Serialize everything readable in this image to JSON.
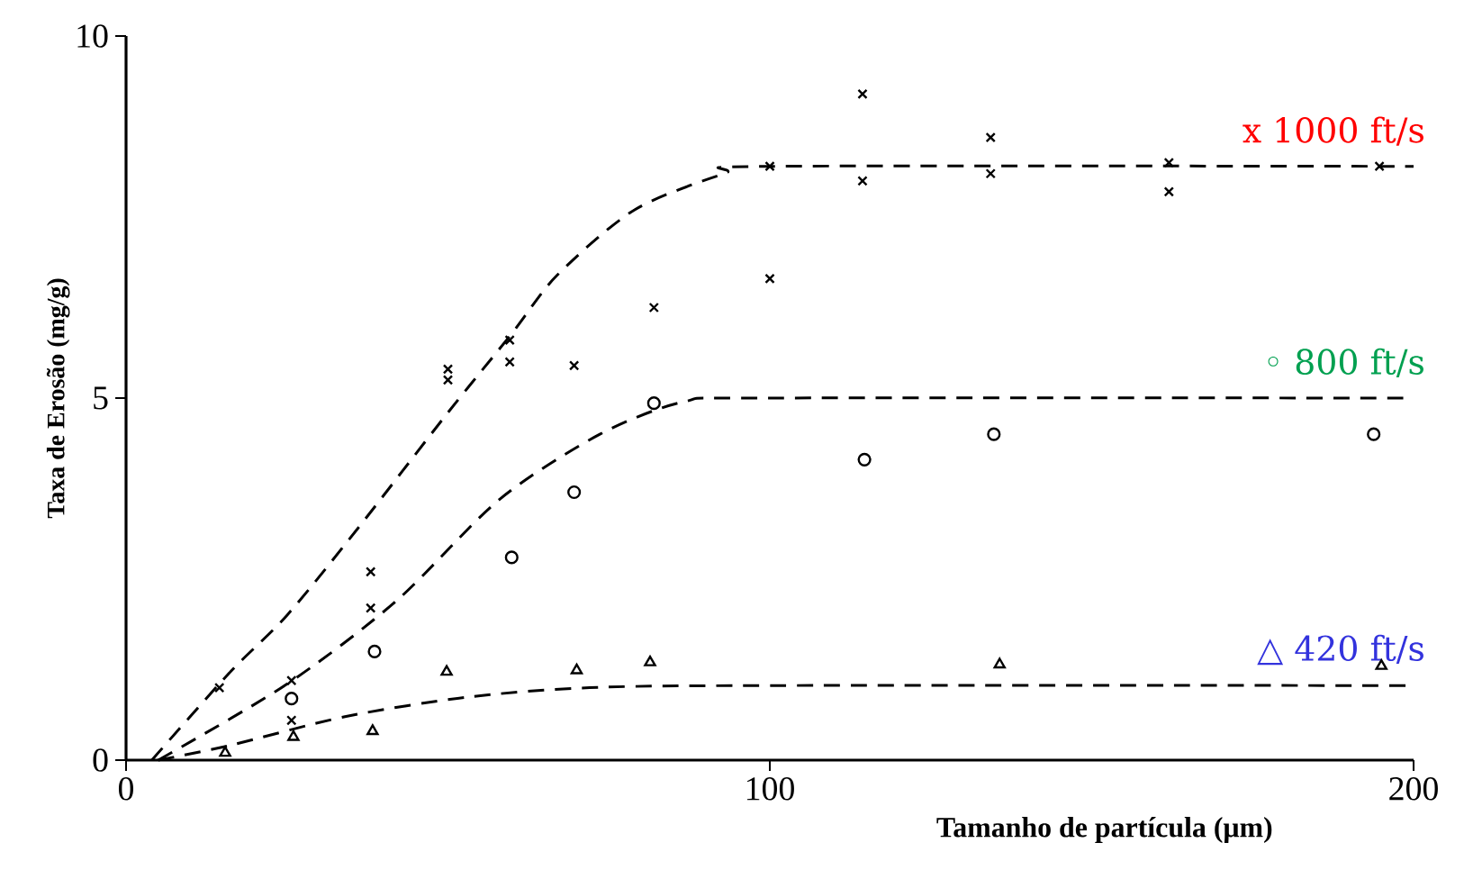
{
  "chart_data": {
    "type": "scatter",
    "xlabel": "Tamanho de partícula (μm)",
    "ylabel": "Taxa de Erosão (mg/g)",
    "xlim": [
      0,
      200
    ],
    "ylim": [
      0,
      10
    ],
    "xticks": [
      0,
      100,
      200
    ],
    "yticks": [
      0,
      5,
      10
    ],
    "grid": false,
    "series": [
      {
        "name": "x 1000 ft/s",
        "color": "#000000",
        "marker": "cross",
        "x": [
          14.5,
          25.7,
          25.7,
          38,
          38,
          50,
          50,
          59.6,
          59.6,
          69.6,
          82,
          100,
          100,
          114.4,
          114.4,
          134.3,
          134.3,
          162,
          162,
          194.7
        ],
        "values": [
          1.0,
          1.1,
          0.55,
          2.6,
          2.1,
          5.4,
          5.25,
          5.8,
          5.5,
          5.45,
          6.25,
          8.2,
          6.65,
          9.2,
          8.0,
          8.6,
          8.1,
          8.25,
          7.85,
          8.2
        ]
      },
      {
        "name": "◦ 800 ft/s",
        "color": "#000000",
        "marker": "circle",
        "x": [
          25.7,
          38.6,
          59.9,
          69.6,
          82,
          114.7,
          134.8,
          193.8
        ],
        "values": [
          0.85,
          1.5,
          2.8,
          3.7,
          4.93,
          4.15,
          4.5,
          4.5
        ]
      },
      {
        "name": "△ 420 ft/s",
        "color": "#000000",
        "marker": "triangle",
        "x": [
          15.4,
          26,
          38.3,
          49.8,
          70,
          81.4,
          135.7,
          195
        ],
        "values": [
          0.1,
          0.32,
          0.4,
          1.22,
          1.24,
          1.35,
          1.32,
          1.3
        ]
      },
      {
        "type": "line",
        "color": "#000000",
        "line_style": "dashed",
        "marker": "none",
        "x": [
          4,
          16,
          25,
          36,
          50,
          60,
          67,
          79,
          93,
          100,
          200
        ],
        "values": [
          0,
          1.2,
          2.0,
          3.2,
          4.8,
          5.9,
          6.7,
          7.6,
          8.1,
          8.2,
          8.2
        ]
      },
      {
        "type": "line",
        "color": "#000000",
        "line_style": "dashed",
        "marker": "none",
        "x": [
          5,
          25,
          42,
          58,
          73.6,
          86.7,
          100,
          200
        ],
        "values": [
          0,
          1.05,
          2.2,
          3.6,
          4.5,
          4.95,
          5.0,
          5.0
        ]
      },
      {
        "type": "line",
        "color": "#000000",
        "line_style": "dashed",
        "marker": "none",
        "x": [
          5,
          16,
          34,
          53,
          72,
          100,
          200
        ],
        "values": [
          0,
          0.2,
          0.6,
          0.87,
          1.0,
          1.03,
          1.03
        ]
      }
    ]
  }
}
